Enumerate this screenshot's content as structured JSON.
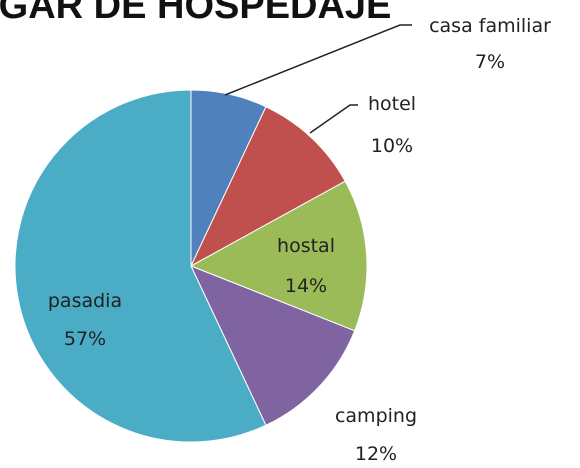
{
  "chart_data": {
    "type": "pie",
    "title": "LUGAR DE HOSPEDAJE",
    "categories": [
      "casa familiar",
      "hotel",
      "hostal",
      "camping",
      "pasadia"
    ],
    "values": [
      7,
      10,
      14,
      12,
      57
    ],
    "value_labels": [
      "7%",
      "10%",
      "14%",
      "12%",
      "57%"
    ],
    "colors": [
      "#4f81bd",
      "#c0504d",
      "#9bbb59",
      "#8064a2",
      "#4bacc6"
    ]
  }
}
